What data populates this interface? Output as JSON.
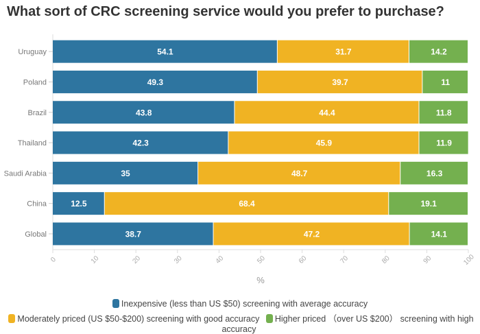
{
  "chart_data": {
    "type": "bar",
    "orientation": "horizontal",
    "stacked": true,
    "title": "What sort of CRC screening service would you prefer to purchase?",
    "xlabel": "%",
    "ylabel": "",
    "xlim": [
      0,
      100
    ],
    "xticks": [
      "0",
      "10",
      "20",
      "30",
      "40",
      "50",
      "60",
      "70",
      "80",
      "90",
      "100"
    ],
    "categories": [
      "Uruguay",
      "Poland",
      "Brazil",
      "Thailand",
      "Saudi Arabia",
      "China",
      "Global"
    ],
    "series": [
      {
        "name": "Inexpensive (less than US $50) screening with average accuracy",
        "color": "#2e75a0",
        "values": [
          54.1,
          49.3,
          43.8,
          42.3,
          35,
          12.5,
          38.7
        ]
      },
      {
        "name": "Moderately priced (US $50-$200) screening with good accuracy",
        "color": "#f0b323",
        "values": [
          31.7,
          39.7,
          44.4,
          45.9,
          48.7,
          68.4,
          47.2
        ]
      },
      {
        "name": "Higher priced （over US $200） screening with high accuracy",
        "color": "#74b04f",
        "values": [
          14.2,
          11,
          11.8,
          11.9,
          16.3,
          19.1,
          14.1
        ]
      }
    ],
    "legend_position": "bottom",
    "grid": false
  }
}
